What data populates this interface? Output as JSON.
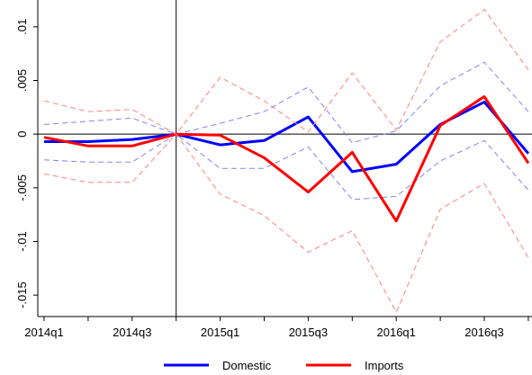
{
  "chart_data": {
    "type": "line",
    "categories": [
      "2014q1",
      "2014q2",
      "2014q3",
      "2014q4",
      "2015q1",
      "2015q2",
      "2015q3",
      "2015q4",
      "2016q1",
      "2016q2",
      "2016q3",
      "2016q4"
    ],
    "xtick_labels": [
      "2014q1",
      "2014q3",
      "2015q1",
      "2015q3",
      "2016q1",
      "2016q3"
    ],
    "ylim": [
      -0.017,
      0.0125
    ],
    "ytick_values": [
      0.01,
      0.005,
      0,
      -0.005,
      -0.01,
      -0.015
    ],
    "ytick_labels": [
      ".01",
      ".005",
      "0",
      "-.005",
      "-.01",
      "-.015"
    ],
    "grid": false,
    "reference_lines": {
      "horizontal_at_y": 0,
      "vertical_at_x": "2014q4"
    },
    "legend_placement": "bottom",
    "series": [
      {
        "name": "Domestic",
        "role": "estimate",
        "color": "#0000ff",
        "style": "solid",
        "values": [
          -0.0007,
          -0.0007,
          -0.0005,
          0,
          -0.001,
          -0.0006,
          0.0016,
          -0.0035,
          -0.0028,
          0.0009,
          0.003,
          -0.0018
        ]
      },
      {
        "role": "ci_upper",
        "of": "Domestic",
        "color": "#8080ff",
        "style": "dashed",
        "values": [
          0.0009,
          0.0012,
          0.0015,
          0,
          0.001,
          0.0021,
          0.0044,
          -0.0008,
          0.0003,
          0.0045,
          0.0067,
          0.0021
        ]
      },
      {
        "role": "ci_lower",
        "of": "Domestic",
        "color": "#8080ff",
        "style": "dashed",
        "values": [
          -0.0024,
          -0.0026,
          -0.0026,
          0,
          -0.0032,
          -0.0032,
          -0.0012,
          -0.0061,
          -0.0058,
          -0.0025,
          -0.0006,
          -0.0052
        ]
      },
      {
        "name": "Imports",
        "role": "estimate",
        "color": "#ff0000",
        "style": "solid",
        "values": [
          -0.0003,
          -0.0011,
          -0.0011,
          0,
          -0.0001,
          -0.0022,
          -0.0054,
          -0.0017,
          -0.0081,
          0.0008,
          0.0035,
          -0.0027
        ]
      },
      {
        "role": "ci_upper",
        "of": "Imports",
        "color": "#ff8080",
        "style": "dashed",
        "values": [
          0.0031,
          0.0021,
          0.0023,
          0,
          0.0053,
          0.0031,
          0.0002,
          0.0057,
          0.0004,
          0.0086,
          0.0116,
          0.006
        ]
      },
      {
        "role": "ci_lower",
        "of": "Imports",
        "color": "#ff8080",
        "style": "dashed",
        "values": [
          -0.0037,
          -0.0045,
          -0.0045,
          0,
          -0.0056,
          -0.0076,
          -0.011,
          -0.009,
          -0.0166,
          -0.007,
          -0.0046,
          -0.0115
        ]
      }
    ],
    "legend": [
      {
        "label": "Domestic",
        "color": "#0000ff"
      },
      {
        "label": "Imports",
        "color": "#ff0000"
      }
    ]
  }
}
